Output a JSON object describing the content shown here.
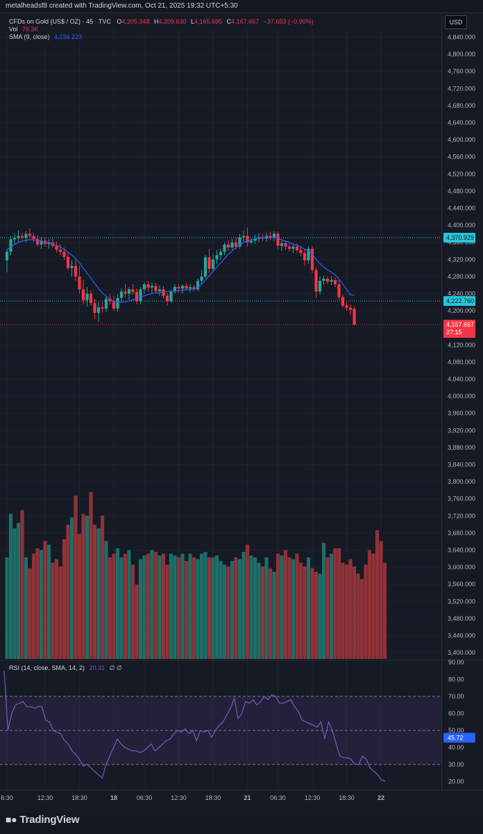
{
  "header": {
    "attribution": "metalheadsf8 created with TradingView.com, Oct 21, 2025 19:32 UTC+5:30"
  },
  "legend": {
    "symbol": "CFDs on Gold (US$ / OZ) · 45 · TVC",
    "o_label": "O",
    "o_value": "4,205.348",
    "h_label": "H",
    "h_value": "4,209.630",
    "l_label": "L",
    "l_value": "4,165.695",
    "c_label": "C",
    "c_value": "4,167.667",
    "change": "−37.653 (−0.90%)",
    "vol_label": "Vol",
    "vol_value": "76.3K",
    "sma_label": "SMA (9, close)",
    "sma_value": "4,236.223",
    "rsi_label": "RSI (14, close, SMA, 14, 2)",
    "rsi_value": "20.31",
    "rsi_extra": "∅ ∅"
  },
  "currency": "USD",
  "footer": {
    "brand": "TradingView"
  },
  "colors": {
    "up": "#26a69a",
    "down": "#f23645",
    "sma": "#2962ff",
    "rsi": "#7e57c2",
    "bg": "#161a25"
  },
  "chart_data": [
    {
      "type": "candlestick",
      "title": "CFDs on Gold (US$ / OZ) · 45 · TVC",
      "ylim": [
        3380,
        4880
      ],
      "y_ticks": [
        3400,
        3440,
        3480,
        3520,
        3560,
        3600,
        3640,
        3680,
        3720,
        3760,
        3800,
        3840,
        3880,
        3920,
        3960,
        4000,
        4040,
        4080,
        4120,
        4160,
        4200,
        4240,
        4280,
        4320,
        4360,
        4400,
        4440,
        4480,
        4520,
        4560,
        4600,
        4640,
        4680,
        4720,
        4760,
        4800,
        4840
      ],
      "y_tick_labels": [
        "3,400.000",
        "3,440.000",
        "3,480.000",
        "3,520.000",
        "3,560.000",
        "3,600.000",
        "3,640.000",
        "3,680.000",
        "3,720.000",
        "3,760.000",
        "3,800.000",
        "3,840.000",
        "3,880.000",
        "3,920.000",
        "3,960.000",
        "4,000.000",
        "4,040.000",
        "4,080.000",
        "4,120.000",
        "4,160.000",
        "4,200.000",
        "4,240.000",
        "4,280.000",
        "4,320.000",
        "4,360.000",
        "4,400.000",
        "4,440.000",
        "4,480.000",
        "4,520.000",
        "4,560.000",
        "4,600.000",
        "4,640.000",
        "4,680.000",
        "4,720.000",
        "4,760.000",
        "4,800.000",
        "4,840.000"
      ],
      "x_tick_labels": [
        "6:30",
        "12:30",
        "18:30",
        "18",
        "06:30",
        "12:30",
        "18:30",
        "21",
        "06:30",
        "12:30",
        "18:30",
        "22"
      ],
      "x_tick_bar_index": [
        0,
        10,
        19,
        28,
        36,
        45,
        54,
        63,
        71,
        80,
        89,
        98
      ],
      "candles": [
        [
          4318,
          4345,
          4290,
          4338
        ],
        [
          4338,
          4375,
          4330,
          4367
        ],
        [
          4367,
          4380,
          4355,
          4370
        ],
        [
          4370,
          4388,
          4362,
          4375
        ],
        [
          4375,
          4383,
          4366,
          4371
        ],
        [
          4371,
          4387,
          4360,
          4380
        ],
        [
          4380,
          4392,
          4370,
          4375
        ],
        [
          4375,
          4382,
          4360,
          4368
        ],
        [
          4368,
          4376,
          4350,
          4355
        ],
        [
          4355,
          4372,
          4345,
          4364
        ],
        [
          4364,
          4372,
          4350,
          4356
        ],
        [
          4356,
          4368,
          4345,
          4360
        ],
        [
          4360,
          4370,
          4348,
          4352
        ],
        [
          4352,
          4362,
          4336,
          4343
        ],
        [
          4343,
          4356,
          4330,
          4338
        ],
        [
          4338,
          4348,
          4320,
          4326
        ],
        [
          4326,
          4335,
          4295,
          4300
        ],
        [
          4300,
          4318,
          4280,
          4305
        ],
        [
          4305,
          4320,
          4270,
          4280
        ],
        [
          4280,
          4305,
          4240,
          4250
        ],
        [
          4250,
          4272,
          4215,
          4225
        ],
        [
          4225,
          4255,
          4210,
          4240
        ],
        [
          4240,
          4248,
          4212,
          4218
        ],
        [
          4218,
          4228,
          4180,
          4195
        ],
        [
          4195,
          4220,
          4175,
          4208
        ],
        [
          4208,
          4220,
          4195,
          4205
        ],
        [
          4205,
          4232,
          4198,
          4228
        ],
        [
          4228,
          4240,
          4215,
          4222
        ],
        [
          4222,
          4235,
          4200,
          4205
        ],
        [
          4205,
          4238,
          4198,
          4230
        ],
        [
          4230,
          4252,
          4222,
          4245
        ],
        [
          4245,
          4262,
          4232,
          4240
        ],
        [
          4240,
          4255,
          4225,
          4250
        ],
        [
          4250,
          4262,
          4238,
          4244
        ],
        [
          4244,
          4252,
          4215,
          4222
        ],
        [
          4222,
          4255,
          4215,
          4250
        ],
        [
          4250,
          4268,
          4240,
          4262
        ],
        [
          4262,
          4270,
          4245,
          4254
        ],
        [
          4254,
          4266,
          4240,
          4258
        ],
        [
          4258,
          4265,
          4240,
          4246
        ],
        [
          4246,
          4260,
          4235,
          4250
        ],
        [
          4250,
          4258,
          4228,
          4235
        ],
        [
          4235,
          4242,
          4212,
          4222
        ],
        [
          4222,
          4250,
          4218,
          4245
        ],
        [
          4245,
          4262,
          4240,
          4256
        ],
        [
          4256,
          4262,
          4242,
          4252
        ],
        [
          4252,
          4262,
          4240,
          4258
        ],
        [
          4258,
          4265,
          4248,
          4252
        ],
        [
          4252,
          4262,
          4243,
          4255
        ],
        [
          4255,
          4260,
          4245,
          4250
        ],
        [
          4250,
          4275,
          4246,
          4270
        ],
        [
          4270,
          4295,
          4262,
          4280
        ],
        [
          4280,
          4330,
          4275,
          4325
        ],
        [
          4325,
          4345,
          4288,
          4298
        ],
        [
          4298,
          4332,
          4290,
          4320
        ],
        [
          4320,
          4342,
          4310,
          4330
        ],
        [
          4330,
          4345,
          4318,
          4338
        ],
        [
          4338,
          4360,
          4330,
          4355
        ],
        [
          4355,
          4366,
          4340,
          4348
        ],
        [
          4348,
          4368,
          4342,
          4360
        ],
        [
          4360,
          4372,
          4344,
          4350
        ],
        [
          4350,
          4380,
          4345,
          4372
        ],
        [
          4372,
          4388,
          4362,
          4375
        ],
        [
          4375,
          4395,
          4350,
          4360
        ],
        [
          4360,
          4370,
          4355,
          4364
        ],
        [
          4364,
          4378,
          4357,
          4368
        ],
        [
          4368,
          4382,
          4360,
          4372
        ],
        [
          4372,
          4380,
          4363,
          4369
        ],
        [
          4369,
          4383,
          4362,
          4375
        ],
        [
          4375,
          4385,
          4365,
          4370
        ],
        [
          4370,
          4386,
          4362,
          4380
        ],
        [
          4380,
          4385,
          4345,
          4352
        ],
        [
          4352,
          4366,
          4340,
          4358
        ],
        [
          4358,
          4363,
          4342,
          4350
        ],
        [
          4350,
          4360,
          4338,
          4345
        ],
        [
          4345,
          4356,
          4335,
          4350
        ],
        [
          4350,
          4357,
          4336,
          4342
        ],
        [
          4342,
          4352,
          4328,
          4335
        ],
        [
          4335,
          4345,
          4305,
          4318
        ],
        [
          4318,
          4350,
          4310,
          4345
        ],
        [
          4345,
          4350,
          4288,
          4295
        ],
        [
          4295,
          4300,
          4230,
          4245
        ],
        [
          4245,
          4280,
          4238,
          4270
        ],
        [
          4270,
          4282,
          4260,
          4275
        ],
        [
          4275,
          4280,
          4262,
          4268
        ],
        [
          4268,
          4281,
          4260,
          4272
        ],
        [
          4272,
          4278,
          4255,
          4262
        ],
        [
          4262,
          4272,
          4225,
          4232
        ],
        [
          4232,
          4238,
          4208,
          4212
        ],
        [
          4212,
          4220,
          4200,
          4207
        ],
        [
          4207,
          4215,
          4190,
          4202
        ],
        [
          4205,
          4209.63,
          4165.695,
          4167.667
        ]
      ],
      "sma_label": "SMA (9, close)",
      "sma_values": [
        4342,
        4350,
        4355,
        4360,
        4363,
        4365,
        4366,
        4366,
        4365,
        4363,
        4361,
        4359,
        4356,
        4353,
        4349,
        4344,
        4337,
        4330,
        4322,
        4312,
        4300,
        4288,
        4276,
        4264,
        4252,
        4242,
        4234,
        4227,
        4222,
        4220,
        4220,
        4221,
        4223,
        4226,
        4228,
        4232,
        4235,
        4238,
        4240,
        4242,
        4243,
        4244,
        4245,
        4245,
        4246,
        4247,
        4248,
        4249,
        4250,
        4251,
        4255,
        4262,
        4272,
        4282,
        4292,
        4302,
        4312,
        4322,
        4332,
        4340,
        4348,
        4354,
        4360,
        4363,
        4366,
        4368,
        4370,
        4371,
        4372,
        4372,
        4372,
        4369,
        4366,
        4363,
        4360,
        4356,
        4353,
        4349,
        4344,
        4340,
        4332,
        4320,
        4310,
        4302,
        4296,
        4290,
        4284,
        4274,
        4262,
        4250,
        4237,
        4236.223
      ],
      "last_price": "4,167.667",
      "countdown": "27:15",
      "price_line_1": "4,370.929",
      "price_line_2": "4,222.760",
      "price_line_1_value": 4370.929,
      "price_line_2_value": 4222.76,
      "last_price_value": 4167.667
    },
    {
      "type": "bar",
      "title": "Vol",
      "label_value": "76.3K",
      "values": [
        56,
        80,
        72,
        75,
        82,
        56,
        50,
        58,
        61,
        60,
        65,
        63,
        53,
        55,
        51,
        66,
        74,
        78,
        90,
        69,
        80,
        79,
        92,
        74,
        72,
        79,
        65,
        56,
        58,
        61,
        56,
        58,
        60,
        52,
        41,
        55,
        57,
        58,
        60,
        59,
        57,
        58,
        52,
        58,
        57,
        56,
        58,
        54,
        58,
        56,
        55,
        58,
        59,
        56,
        56,
        57,
        54,
        52,
        51,
        54,
        56,
        55,
        59,
        63,
        57,
        56,
        53,
        51,
        56,
        50,
        48,
        58,
        57,
        60,
        56,
        55,
        58,
        53,
        51,
        56,
        50,
        48,
        47,
        64,
        56,
        58,
        61,
        61,
        53,
        52,
        55,
        51,
        47,
        44,
        52,
        60,
        58,
        71,
        65,
        53
      ],
      "up_down": "down",
      "max": 80
    },
    {
      "type": "line",
      "title": "RSI (14, close, SMA, 14, 2)",
      "ylim": [
        15,
        95
      ],
      "y_ticks": [
        20,
        30,
        40,
        50,
        60,
        70,
        80,
        90
      ],
      "y_tick_labels": [
        "20.00",
        "30.00",
        "40.00",
        "50.00",
        "60.00",
        "70.00",
        "80.00",
        "90.00"
      ],
      "bands": {
        "upper": 70,
        "middle": 50,
        "lower": 30
      },
      "values": [
        85,
        50,
        60,
        65,
        66,
        67,
        64,
        64,
        63,
        64,
        64,
        56,
        55,
        50,
        49,
        48,
        44,
        42,
        38,
        36,
        33,
        29,
        30,
        28,
        26,
        24,
        22,
        30,
        35,
        40,
        45,
        42,
        40,
        39,
        38,
        38,
        37,
        38,
        40,
        42,
        38,
        40,
        42,
        44,
        45,
        48,
        50,
        49,
        51,
        48,
        50,
        44,
        50,
        49,
        50,
        46,
        50,
        53,
        55,
        59,
        63,
        69,
        57,
        60,
        67,
        66,
        68,
        65,
        67,
        70,
        68,
        71,
        70,
        66,
        66,
        67,
        68,
        64,
        61,
        56,
        55,
        54,
        53,
        52,
        55,
        45,
        55,
        50,
        42,
        35,
        34,
        34,
        33,
        30,
        30,
        35,
        33,
        28,
        26,
        24,
        21,
        20.31
      ],
      "current_label": "45.72",
      "current_label_value": 45.72
    }
  ]
}
